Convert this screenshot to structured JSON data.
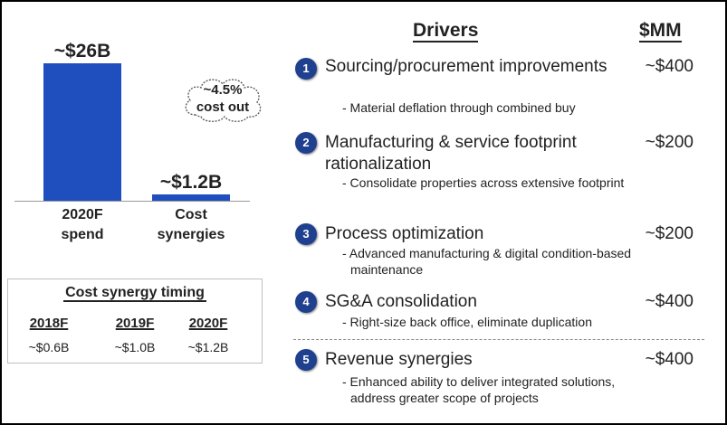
{
  "chart_data": {
    "type": "bar",
    "categories": [
      "2020F spend",
      "Cost synergies"
    ],
    "category_lines": [
      [
        "2020F",
        "spend"
      ],
      [
        "Cost",
        "synergies"
      ]
    ],
    "values": [
      26,
      1.2
    ],
    "value_labels": [
      "~$26B",
      "~$1.2B"
    ],
    "bar_color": "#1f4fbf",
    "annotation": [
      "~4.5%",
      "cost out"
    ]
  },
  "timing": {
    "title": "Cost synergy timing",
    "years": [
      "2018F",
      "2019F",
      "2020F"
    ],
    "values": [
      "~$0.6B",
      "~$1.0B",
      "~$1.2B"
    ]
  },
  "drivers": {
    "header": "Drivers",
    "value_header": "$MM",
    "items": [
      {
        "num": "1",
        "title": "Sourcing/procurement improvements",
        "sub": "- Material deflation through combined buy",
        "value": "~$400"
      },
      {
        "num": "2",
        "title": "Manufacturing & service footprint rationalization",
        "sub": "- Consolidate properties across extensive footprint",
        "value": "~$200"
      },
      {
        "num": "3",
        "title": "Process optimization",
        "sub": "- Advanced manufacturing & digital condition-based maintenance",
        "value": "~$200"
      },
      {
        "num": "4",
        "title": "SG&A consolidation",
        "sub": "- Right-size back office, eliminate duplication",
        "value": "~$400"
      },
      {
        "num": "5",
        "title": "Revenue synergies",
        "sub": "- Enhanced ability to deliver integrated solutions, address greater scope of projects",
        "value": "~$400"
      }
    ]
  },
  "colors": {
    "accent": "#1f4fbf",
    "circle": "#1f3f8f"
  }
}
